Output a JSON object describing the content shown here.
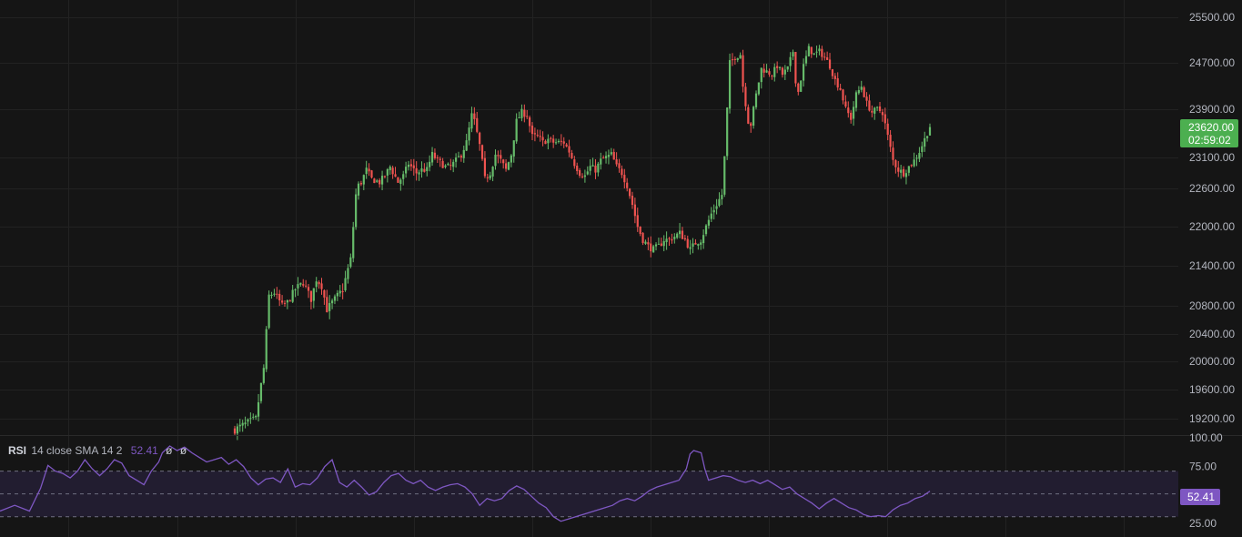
{
  "theme": {
    "background": "#151515",
    "grid": "#222222",
    "up": "#66bb6a",
    "down": "#ef5350",
    "rsi_line": "#7e57c2",
    "rsi_band": "#221d30",
    "price_badge": "#4caf50",
    "axis_text": "#b2b5be"
  },
  "price_axis": {
    "ticks": [
      "25500.00",
      "24700.00",
      "23900.00",
      "23100.00",
      "22600.00",
      "22000.00",
      "21400.00",
      "20800.00",
      "20400.00",
      "20000.00",
      "19600.00",
      "19200.00"
    ]
  },
  "last_price": {
    "value": "23620.00",
    "countdown": "02:59:02"
  },
  "rsi": {
    "name": "RSI",
    "params": "14 close SMA 14 2",
    "value": "52.41",
    "na1": "ø",
    "na2": "ø",
    "axis_ticks": [
      "100.00",
      "75.00",
      "25.00"
    ],
    "upper_band": 70,
    "lower_band": 30,
    "mid": 50
  },
  "chart_data": {
    "type": "candlestick",
    "ylim": [
      19000,
      25500
    ],
    "close_path": [
      [
        0,
        19050
      ],
      [
        8,
        19200
      ],
      [
        11,
        19900
      ],
      [
        13,
        20950
      ],
      [
        15,
        21000
      ],
      [
        18,
        20800
      ],
      [
        20,
        20850
      ],
      [
        23,
        21050
      ],
      [
        26,
        21150
      ],
      [
        29,
        20900
      ],
      [
        31,
        21200
      ],
      [
        33,
        21100
      ],
      [
        35,
        20750
      ],
      [
        37,
        20850
      ],
      [
        39,
        20950
      ],
      [
        41,
        21050
      ],
      [
        44,
        21500
      ],
      [
        46,
        22500
      ],
      [
        47,
        22650
      ],
      [
        48,
        22700
      ],
      [
        50,
        22900
      ],
      [
        52,
        22750
      ],
      [
        55,
        22700
      ],
      [
        57,
        22800
      ],
      [
        59,
        22950
      ],
      [
        62,
        22700
      ],
      [
        64,
        22800
      ],
      [
        66,
        23000
      ],
      [
        69,
        22850
      ],
      [
        71,
        22900
      ],
      [
        73,
        22900
      ],
      [
        75,
        23150
      ],
      [
        77,
        23050
      ],
      [
        80,
        22950
      ],
      [
        82,
        22950
      ],
      [
        84,
        23050
      ],
      [
        86,
        23150
      ],
      [
        88,
        23350
      ],
      [
        90,
        23800
      ],
      [
        91,
        23700
      ],
      [
        93,
        23300
      ],
      [
        95,
        22750
      ],
      [
        97,
        22850
      ],
      [
        99,
        23150
      ],
      [
        101,
        23050
      ],
      [
        103,
        22900
      ],
      [
        105,
        23150
      ],
      [
        107,
        23700
      ],
      [
        109,
        23850
      ],
      [
        111,
        23800
      ],
      [
        113,
        23450
      ],
      [
        115,
        23450
      ],
      [
        117,
        23350
      ],
      [
        119,
        23400
      ],
      [
        121,
        23350
      ],
      [
        123,
        23350
      ],
      [
        125,
        23350
      ],
      [
        127,
        23200
      ],
      [
        129,
        23000
      ],
      [
        131,
        22850
      ],
      [
        133,
        22800
      ],
      [
        135,
        22950
      ],
      [
        137,
        22900
      ],
      [
        139,
        23050
      ],
      [
        141,
        23100
      ],
      [
        143,
        23150
      ],
      [
        145,
        22950
      ],
      [
        147,
        22850
      ],
      [
        149,
        22650
      ],
      [
        151,
        22350
      ],
      [
        153,
        22000
      ],
      [
        155,
        21800
      ],
      [
        157,
        21700
      ],
      [
        159,
        21650
      ],
      [
        161,
        21700
      ],
      [
        163,
        21800
      ],
      [
        165,
        21800
      ],
      [
        167,
        21850
      ],
      [
        169,
        21900
      ],
      [
        171,
        21800
      ],
      [
        173,
        21650
      ],
      [
        175,
        21750
      ],
      [
        177,
        21800
      ],
      [
        179,
        22000
      ],
      [
        181,
        22200
      ],
      [
        183,
        22350
      ],
      [
        185,
        22500
      ],
      [
        186,
        23100
      ],
      [
        187,
        23900
      ],
      [
        188,
        24700
      ],
      [
        190,
        24800
      ],
      [
        192,
        24850
      ],
      [
        193,
        24300
      ],
      [
        195,
        23700
      ],
      [
        196,
        23650
      ],
      [
        198,
        24150
      ],
      [
        200,
        24600
      ],
      [
        202,
        24550
      ],
      [
        204,
        24500
      ],
      [
        206,
        24650
      ],
      [
        208,
        24500
      ],
      [
        210,
        24600
      ],
      [
        212,
        24900
      ],
      [
        213,
        24400
      ],
      [
        214,
        24200
      ],
      [
        216,
        24650
      ],
      [
        218,
        24950
      ],
      [
        220,
        24850
      ],
      [
        222,
        24900
      ],
      [
        224,
        24800
      ],
      [
        226,
        24650
      ],
      [
        228,
        24400
      ],
      [
        230,
        24250
      ],
      [
        232,
        23900
      ],
      [
        234,
        23750
      ],
      [
        236,
        24150
      ],
      [
        238,
        24300
      ],
      [
        240,
        24000
      ],
      [
        242,
        23850
      ],
      [
        244,
        23900
      ],
      [
        246,
        23850
      ],
      [
        248,
        23450
      ],
      [
        250,
        23050
      ],
      [
        252,
        22900
      ],
      [
        254,
        22850
      ],
      [
        256,
        22950
      ],
      [
        258,
        23050
      ],
      [
        260,
        23200
      ],
      [
        262,
        23400
      ],
      [
        264,
        23620
      ]
    ],
    "rsi_path": [
      [
        0,
        35
      ],
      [
        4,
        40
      ],
      [
        8,
        35
      ],
      [
        11,
        55
      ],
      [
        13,
        75
      ],
      [
        15,
        70
      ],
      [
        17,
        68
      ],
      [
        19,
        64
      ],
      [
        21,
        70
      ],
      [
        23,
        80
      ],
      [
        25,
        72
      ],
      [
        27,
        66
      ],
      [
        29,
        72
      ],
      [
        31,
        80
      ],
      [
        33,
        77
      ],
      [
        35,
        66
      ],
      [
        37,
        62
      ],
      [
        39,
        58
      ],
      [
        41,
        70
      ],
      [
        43,
        78
      ],
      [
        44,
        86
      ],
      [
        46,
        92
      ],
      [
        48,
        88
      ],
      [
        50,
        91
      ],
      [
        52,
        86
      ],
      [
        54,
        82
      ],
      [
        56,
        78
      ],
      [
        58,
        80
      ],
      [
        60,
        82
      ],
      [
        62,
        76
      ],
      [
        64,
        80
      ],
      [
        66,
        74
      ],
      [
        68,
        64
      ],
      [
        70,
        58
      ],
      [
        72,
        63
      ],
      [
        74,
        64
      ],
      [
        76,
        60
      ],
      [
        78,
        72
      ],
      [
        80,
        56
      ],
      [
        82,
        59
      ],
      [
        84,
        58
      ],
      [
        86,
        64
      ],
      [
        88,
        74
      ],
      [
        90,
        80
      ],
      [
        92,
        60
      ],
      [
        94,
        56
      ],
      [
        96,
        62
      ],
      [
        98,
        56
      ],
      [
        100,
        49
      ],
      [
        102,
        52
      ],
      [
        104,
        60
      ],
      [
        106,
        66
      ],
      [
        108,
        68
      ],
      [
        110,
        62
      ],
      [
        112,
        59
      ],
      [
        114,
        62
      ],
      [
        116,
        56
      ],
      [
        118,
        53
      ],
      [
        120,
        56
      ],
      [
        122,
        58
      ],
      [
        124,
        59
      ],
      [
        126,
        56
      ],
      [
        128,
        50
      ],
      [
        130,
        40
      ],
      [
        132,
        46
      ],
      [
        134,
        44
      ],
      [
        136,
        46
      ],
      [
        138,
        53
      ],
      [
        140,
        57
      ],
      [
        142,
        54
      ],
      [
        144,
        48
      ],
      [
        146,
        42
      ],
      [
        148,
        38
      ],
      [
        150,
        30
      ],
      [
        152,
        26
      ],
      [
        154,
        28
      ],
      [
        156,
        30
      ],
      [
        158,
        32
      ],
      [
        160,
        34
      ],
      [
        162,
        36
      ],
      [
        164,
        38
      ],
      [
        166,
        40
      ],
      [
        168,
        44
      ],
      [
        170,
        46
      ],
      [
        172,
        44
      ],
      [
        174,
        48
      ],
      [
        176,
        53
      ],
      [
        178,
        56
      ],
      [
        180,
        58
      ],
      [
        182,
        60
      ],
      [
        184,
        62
      ],
      [
        186,
        72
      ],
      [
        187,
        85
      ],
      [
        188,
        88
      ],
      [
        190,
        86
      ],
      [
        191,
        72
      ],
      [
        192,
        62
      ],
      [
        194,
        64
      ],
      [
        196,
        66
      ],
      [
        198,
        65
      ],
      [
        200,
        62
      ],
      [
        202,
        60
      ],
      [
        204,
        62
      ],
      [
        206,
        59
      ],
      [
        208,
        62
      ],
      [
        210,
        58
      ],
      [
        212,
        54
      ],
      [
        214,
        56
      ],
      [
        216,
        50
      ],
      [
        218,
        46
      ],
      [
        220,
        42
      ],
      [
        222,
        37
      ],
      [
        224,
        42
      ],
      [
        226,
        46
      ],
      [
        228,
        42
      ],
      [
        230,
        38
      ],
      [
        232,
        36
      ],
      [
        234,
        32
      ],
      [
        236,
        30
      ],
      [
        238,
        31
      ],
      [
        240,
        30
      ],
      [
        242,
        36
      ],
      [
        244,
        40
      ],
      [
        246,
        42
      ],
      [
        248,
        46
      ],
      [
        250,
        48
      ],
      [
        252,
        52.41
      ]
    ]
  }
}
